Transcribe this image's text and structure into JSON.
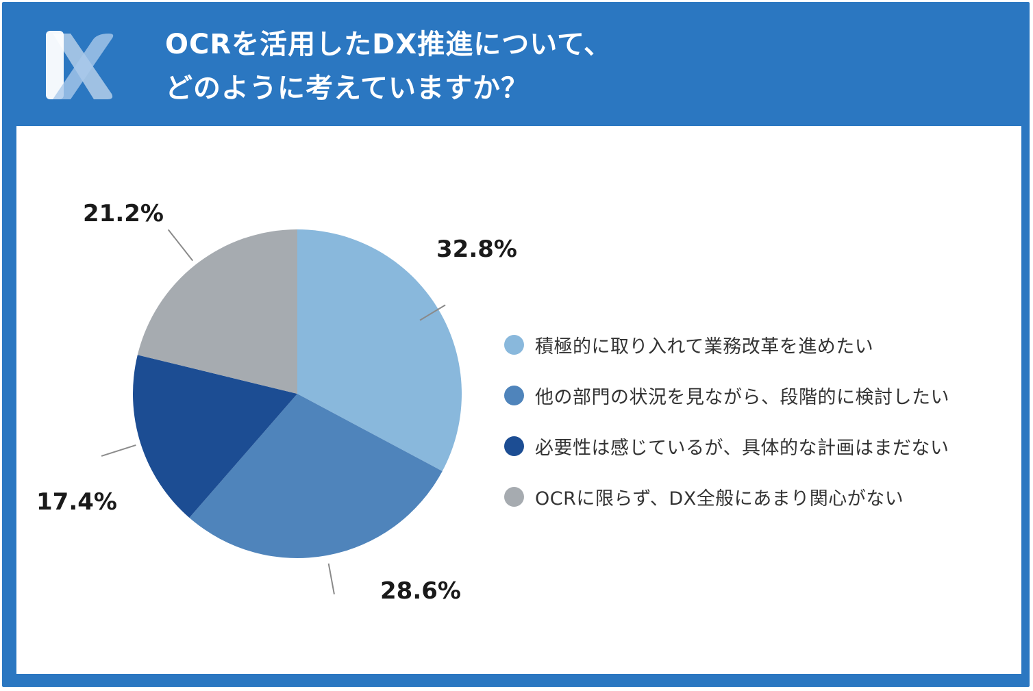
{
  "header": {
    "title_line1": "OCRを活用したDX推進について、",
    "title_line2": "どのように考えていますか？",
    "logo_icon": "dx-logo-icon"
  },
  "colors": {
    "frame": "#2b77c1",
    "series": [
      "#89b8dc",
      "#4f84bb",
      "#1c4d93",
      "#a6abb0"
    ]
  },
  "chart_data": {
    "type": "pie",
    "title": "OCRを活用したDX推進について、どのように考えていますか？",
    "categories": [
      "積極的に取り入れて業務改革を進めたい",
      "他の部門の状況を見ながら、段階的に検討したい",
      "必要性は感じているが、具体的な計画はまだない",
      "OCRに限らず、DX全般にあまり関心がない"
    ],
    "values": [
      32.8,
      28.6,
      17.4,
      21.2
    ],
    "labels": [
      "32.8%",
      "28.6%",
      "17.4%",
      "21.2%"
    ],
    "start": "12 o'clock",
    "direction": "clockwise",
    "legend_position": "right"
  }
}
